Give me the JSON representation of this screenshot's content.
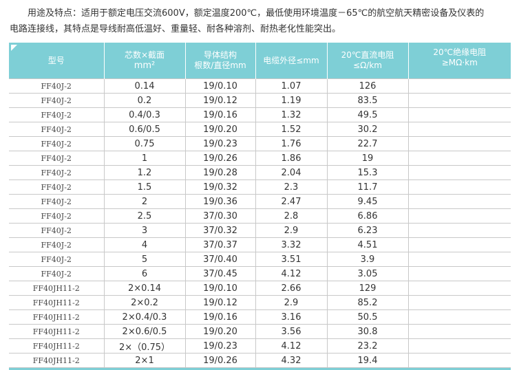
{
  "intro": {
    "line1": "用途及特点：适用于额定电压交流600V，额定温度200℃，最低使用环境温度－65℃的航空航天精密设备及仪表的",
    "line2": "电路连接线，其特点是导线耐高低温好、重量轻、耐各种溶剂、耐热老化性能突出。"
  },
  "table": {
    "headers": {
      "model": "型号",
      "cores_1": "芯数×截面",
      "cores_2": "mm²",
      "conductor_1": "导体结构",
      "conductor_2": "根数/直径mm",
      "outer_diameter": "电缆外径≤mm",
      "resistance_1": "20℃直流电阻",
      "resistance_2": "≤Ω/km",
      "insulation_1": "20℃绝缘电阻",
      "insulation_2": "≥MΩ·km"
    },
    "rows": [
      [
        "FF40J-2",
        "0.14",
        "19/0.10",
        "1.07",
        "126",
        ""
      ],
      [
        "FF40J-2",
        "0.2",
        "19/0.12",
        "1.19",
        "83.5",
        ""
      ],
      [
        "FF40J-2",
        "0.4/0.3",
        "19/0.16",
        "1.32",
        "49.5",
        ""
      ],
      [
        "FF40J-2",
        "0.6/0.5",
        "19/0.20",
        "1.52",
        "30.2",
        ""
      ],
      [
        "FF40J-2",
        "0.75",
        "19/0.23",
        "1.76",
        "22.7",
        ""
      ],
      [
        "FF40J-2",
        "1",
        "19/0.26",
        "1.86",
        "19",
        ""
      ],
      [
        "FF40J-2",
        "1.2",
        "19/0.28",
        "2.04",
        "15.3",
        ""
      ],
      [
        "FF40J-2",
        "1.5",
        "19/0.32",
        "2.3",
        "11.7",
        ""
      ],
      [
        "FF40J-2",
        "2",
        "19/0.36",
        "2.47",
        "9.45",
        ""
      ],
      [
        "FF40J-2",
        "2.5",
        "37/0.30",
        "2.8",
        "6.86",
        ""
      ],
      [
        "FF40J-2",
        "3",
        "37/0.32",
        "2.9",
        "6.23",
        ""
      ],
      [
        "FF40J-2",
        "4",
        "37/0.37",
        "3.32",
        "4.51",
        ""
      ],
      [
        "FF40J-2",
        "5",
        "37/0.40",
        "3.51",
        "3.9",
        ""
      ],
      [
        "FF40J-2",
        "6",
        "37/0.45",
        "4.12",
        "3.05",
        ""
      ],
      [
        "FF40JH11-2",
        "2×0.14",
        "19/0.10",
        "2.66",
        "129",
        ""
      ],
      [
        "FF40JH11-2",
        "2×0.2",
        "19/0.12",
        "2.9",
        "85.2",
        ""
      ],
      [
        "FF40JH11-2",
        "2×0.4/0.3",
        "19/0.16",
        "3.16",
        "50.5",
        ""
      ],
      [
        "FF40JH11-2",
        "2×0.6/0.5",
        "19/0.20",
        "3.56",
        "30.8",
        ""
      ],
      [
        "FF40JH11-2",
        "2×（0.75）",
        "19/0.23",
        "4.12",
        "23.2",
        ""
      ],
      [
        "FF40JH11-2",
        "2×1",
        "19/0.26",
        "4.32",
        "19.4",
        ""
      ]
    ]
  }
}
